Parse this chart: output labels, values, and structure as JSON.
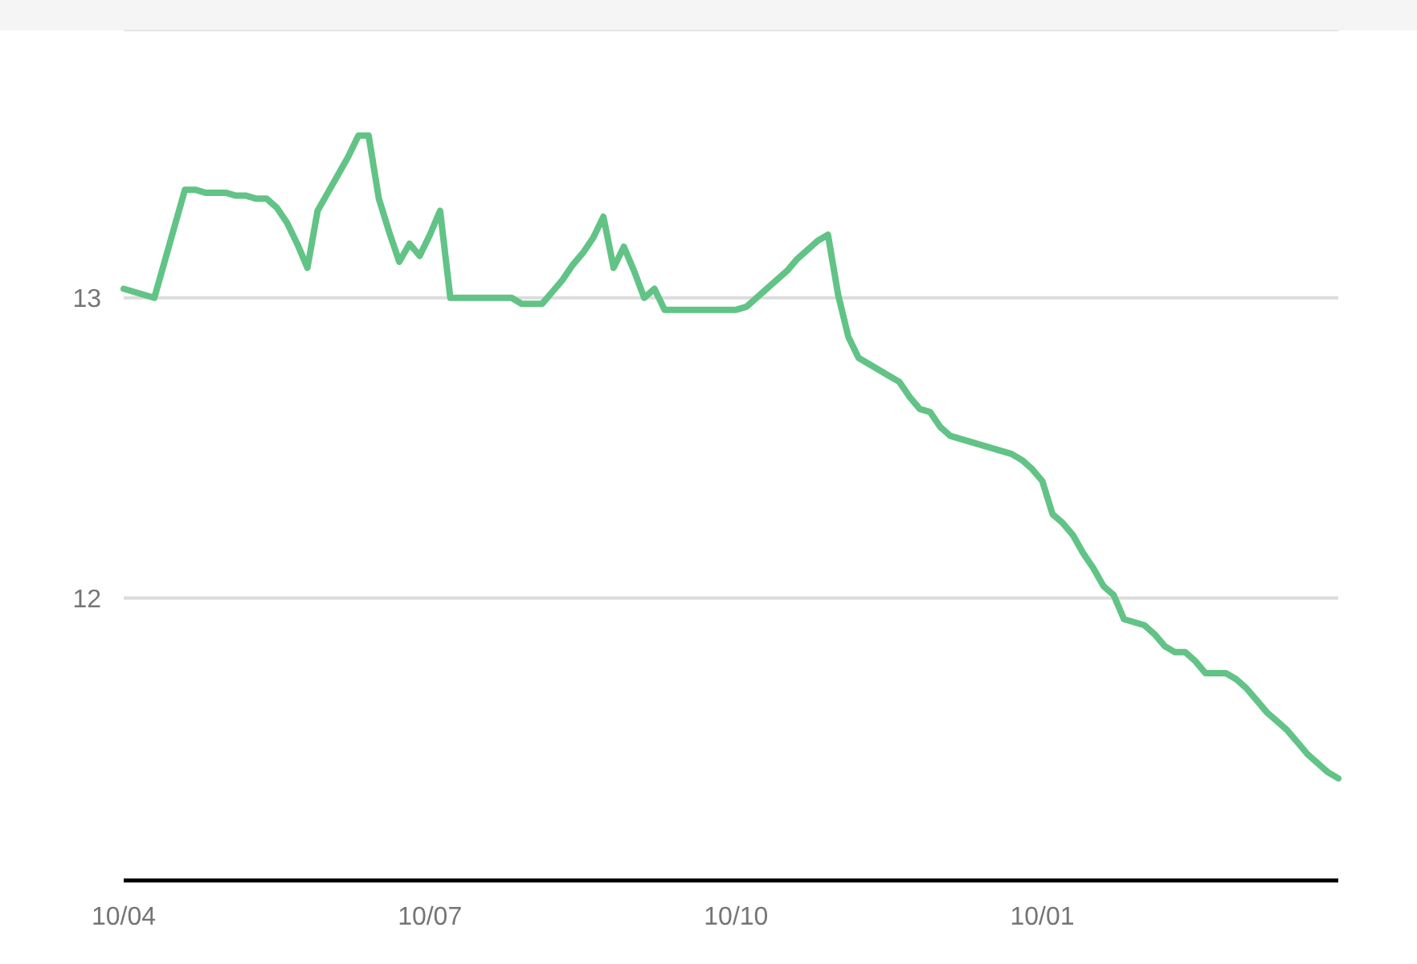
{
  "chart_data": {
    "type": "line",
    "categories": [
      "10/04",
      null,
      null,
      null,
      null,
      null,
      null,
      null,
      null,
      null,
      null,
      null,
      null,
      null,
      null,
      null,
      null,
      null,
      null,
      null,
      null,
      null,
      null,
      null,
      null,
      null,
      null,
      null,
      null,
      null,
      "10/07",
      null,
      null,
      null,
      null,
      null,
      null,
      null,
      null,
      null,
      null,
      null,
      null,
      null,
      null,
      null,
      null,
      null,
      null,
      null,
      null,
      null,
      null,
      null,
      null,
      null,
      null,
      null,
      null,
      null,
      "10/10",
      null,
      null,
      null,
      null,
      null,
      null,
      null,
      null,
      null,
      null,
      null,
      null,
      null,
      null,
      null,
      null,
      null,
      null,
      null,
      null,
      null,
      null,
      null,
      null,
      null,
      null,
      null,
      null,
      null,
      "10/01",
      null,
      null,
      null,
      null,
      null,
      null,
      null,
      null,
      null,
      null,
      null,
      null,
      null,
      null,
      null,
      null,
      null,
      null,
      null,
      null,
      null,
      null,
      null,
      null,
      null,
      null,
      null,
      null,
      null
    ],
    "series": [
      {
        "color": "#62c386",
        "values": [
          13.03,
          13.02,
          13.01,
          13.0,
          13.12,
          13.24,
          13.36,
          13.36,
          13.35,
          13.35,
          13.35,
          13.34,
          13.34,
          13.33,
          13.33,
          13.3,
          13.25,
          13.18,
          13.1,
          13.29,
          13.35,
          13.41,
          13.47,
          13.54,
          13.54,
          13.33,
          13.22,
          13.12,
          13.18,
          13.14,
          13.21,
          13.29,
          13.0,
          13.0,
          13.0,
          13.0,
          13.0,
          13.0,
          13.0,
          12.98,
          12.98,
          12.98,
          13.02,
          13.06,
          13.11,
          13.15,
          13.2,
          13.27,
          13.1,
          13.17,
          13.09,
          13.0,
          13.03,
          12.96,
          12.96,
          12.96,
          12.96,
          12.96,
          12.96,
          12.96,
          12.96,
          12.97,
          13.0,
          13.03,
          13.06,
          13.09,
          13.13,
          13.16,
          13.19,
          13.21,
          13.01,
          12.87,
          12.8,
          12.78,
          12.76,
          12.74,
          12.72,
          12.67,
          12.63,
          12.62,
          12.57,
          12.54,
          12.53,
          12.52,
          12.51,
          12.5,
          12.49,
          12.48,
          12.46,
          12.43,
          12.39,
          12.28,
          12.25,
          12.21,
          12.15,
          12.1,
          12.04,
          12.01,
          11.93,
          11.92,
          11.91,
          11.88,
          11.84,
          11.82,
          11.82,
          11.79,
          11.75,
          11.75,
          11.75,
          11.73,
          11.7,
          11.66,
          11.62,
          11.59,
          11.56,
          11.52,
          11.48,
          11.45,
          11.42,
          11.4
        ]
      }
    ],
    "ylim": [
      11.06,
      13.89
    ],
    "yticks": [
      12,
      13
    ],
    "grid": "y",
    "line_style": "solid"
  }
}
